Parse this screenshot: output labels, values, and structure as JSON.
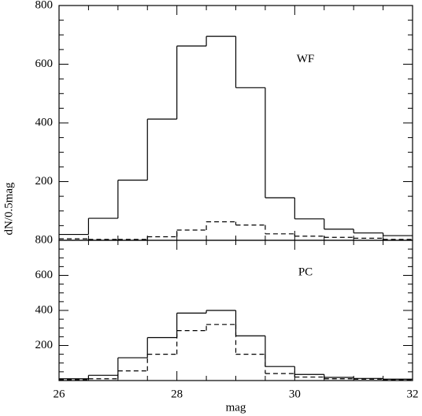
{
  "chart_data": [
    {
      "type": "histogram",
      "annotation": "WF",
      "ylabel": "dN/0.5mag",
      "bins": [
        26,
        26.5,
        27,
        27.5,
        28,
        28.5,
        29,
        29.5,
        30,
        30.5,
        31,
        31.5,
        32
      ],
      "series": [
        {
          "color": "#000000",
          "linestyle": "solid",
          "values": [
            20,
            75,
            205,
            413,
            662,
            695,
            520,
            145,
            73,
            38,
            25,
            16
          ]
        },
        {
          "color": "#000000",
          "linestyle": "dashed",
          "values": [
            5,
            3,
            3,
            12,
            35,
            63,
            52,
            22,
            14,
            10,
            7,
            3
          ]
        }
      ],
      "xlim": [
        26,
        32
      ],
      "ylim": [
        0,
        800
      ],
      "yticks": [
        200,
        400,
        600,
        800
      ]
    },
    {
      "type": "histogram",
      "annotation": "PC",
      "xlabel": "mag",
      "bins": [
        26,
        26.5,
        27,
        27.5,
        28,
        28.5,
        29,
        29.5,
        30,
        30.5,
        31,
        31.5,
        32
      ],
      "series": [
        {
          "color": "#000000",
          "linestyle": "solid",
          "values": [
            10,
            30,
            130,
            245,
            385,
            400,
            255,
            80,
            35,
            18,
            12,
            8
          ]
        },
        {
          "color": "#000000",
          "linestyle": "dashed",
          "values": [
            5,
            10,
            55,
            150,
            285,
            320,
            150,
            40,
            20,
            10,
            8,
            5
          ]
        }
      ],
      "xlim": [
        26,
        32
      ],
      "xticks": [
        26,
        28,
        30,
        32
      ],
      "ylim": [
        0,
        800
      ],
      "yticks": [
        200,
        400,
        600,
        800
      ]
    }
  ]
}
